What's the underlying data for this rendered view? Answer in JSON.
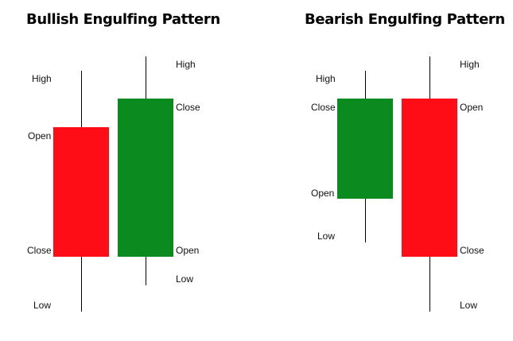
{
  "colors": {
    "bullish": "#0a8a1f",
    "bearish": "#ff0d16",
    "wick": "#000000"
  },
  "patterns": [
    {
      "title": "Bullish Engulfing Pattern",
      "candles": [
        {
          "color": "bearish",
          "labels": {
            "high": "High",
            "open": "Open",
            "close": "Close",
            "low": "Low"
          }
        },
        {
          "color": "bullish",
          "labels": {
            "high": "High",
            "close": "Close",
            "open": "Open",
            "low": "Low"
          }
        }
      ]
    },
    {
      "title": "Bearish Engulfing Pattern",
      "candles": [
        {
          "color": "bullish",
          "labels": {
            "high": "High",
            "close": "Close",
            "open": "Open",
            "low": "Low"
          }
        },
        {
          "color": "bearish",
          "labels": {
            "high": "High",
            "open": "Open",
            "close": "Close",
            "low": "Low"
          }
        }
      ]
    }
  ]
}
